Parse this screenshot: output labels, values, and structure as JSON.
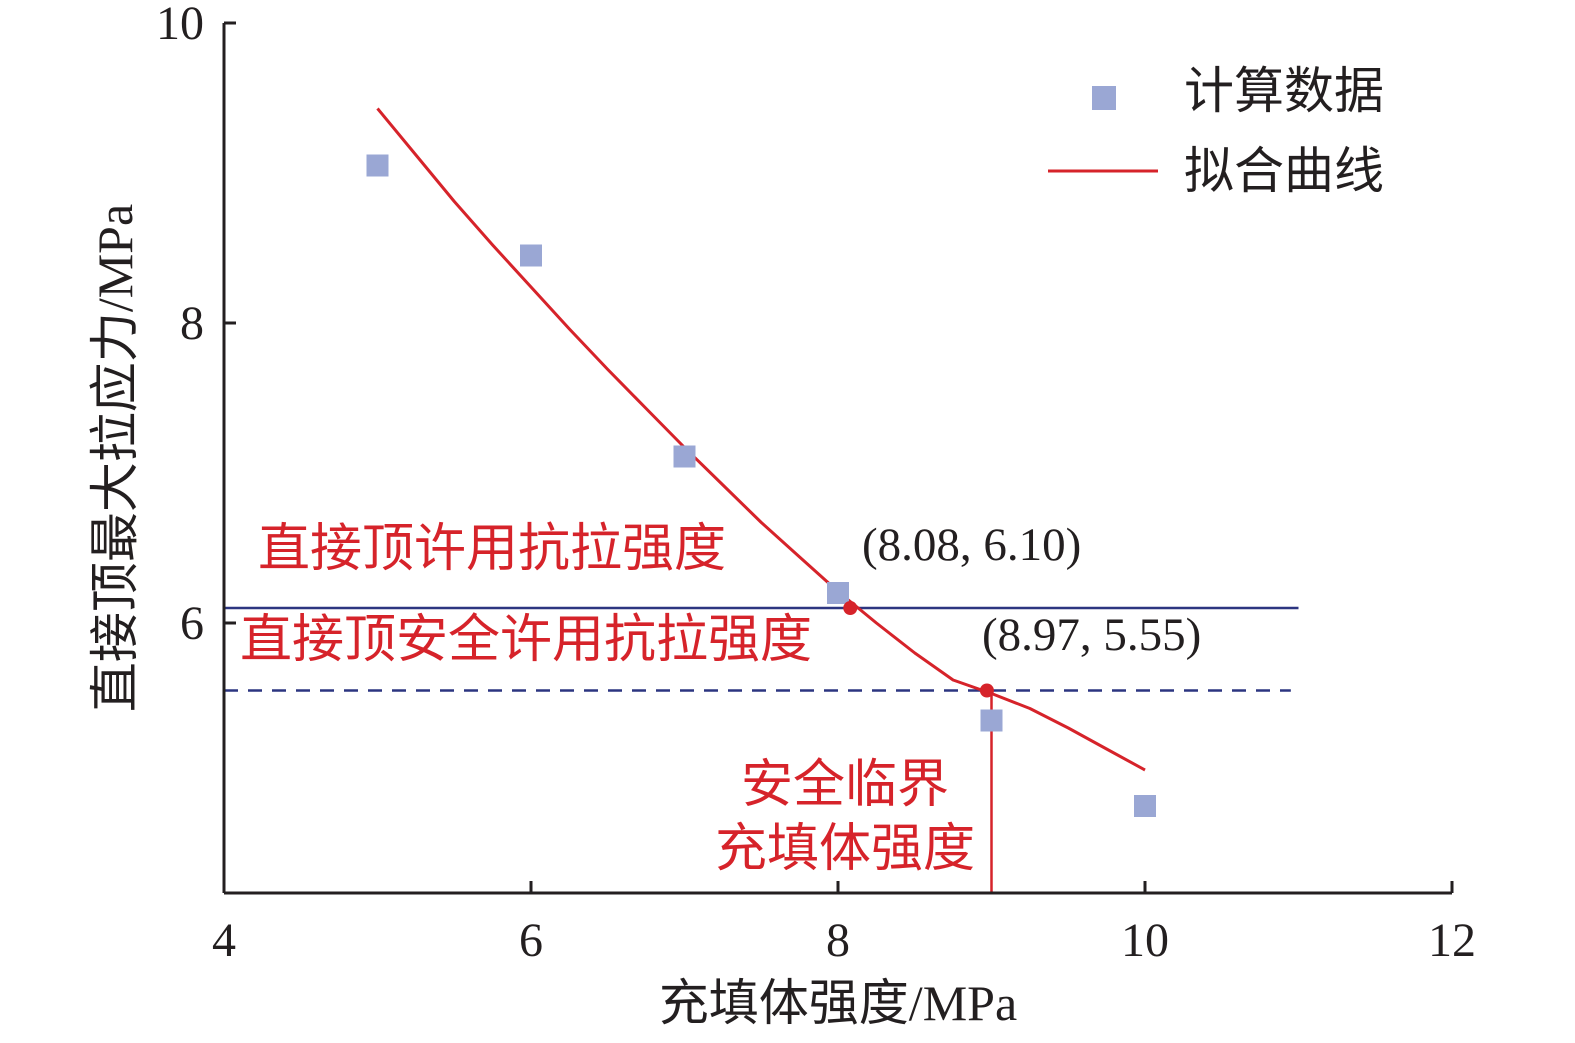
{
  "colors": {
    "scatter": "#9aa7d4",
    "fit": "#d6232a",
    "allow_line": "#2c3580",
    "safe_line": "#2c3580",
    "critical": "#d6232a",
    "annotation_text": "#d6232a",
    "axis": "#231f20"
  },
  "chart_data": {
    "type": "scatter",
    "title": "",
    "xlabel": "充填体强度/MPa",
    "ylabel": "直接顶最大拉应力/MPa",
    "xlim": [
      4,
      12
    ],
    "ylim": [
      4.2,
      10
    ],
    "xticks": [
      4,
      6,
      8,
      10,
      12
    ],
    "yticks": [
      6,
      8,
      10
    ],
    "xtick_labels": [
      "4",
      "6",
      "8",
      "10",
      "12"
    ],
    "ytick_labels": [
      "6",
      "8",
      "10"
    ],
    "grid": false,
    "legend_position": "top-right",
    "series": [
      {
        "name": "计算数据",
        "type": "scatter",
        "marker": "square",
        "x": [
          5,
          6,
          7,
          8,
          9,
          10
        ],
        "y": [
          9.05,
          8.45,
          7.11,
          6.2,
          5.35,
          4.78
        ]
      },
      {
        "name": "拟合曲线",
        "type": "line",
        "x": [
          5,
          5.25,
          5.5,
          5.75,
          6,
          6.25,
          6.5,
          6.75,
          7,
          7.25,
          7.5,
          7.75,
          8,
          8.25,
          8.5,
          8.75,
          9,
          9.25,
          9.5,
          9.75,
          10
        ],
        "y": [
          9.43,
          9.12,
          8.81,
          8.52,
          8.24,
          7.96,
          7.69,
          7.43,
          7.17,
          6.92,
          6.67,
          6.44,
          6.21,
          6.0,
          5.8,
          5.62,
          5.53,
          5.43,
          5.3,
          5.16,
          5.02
        ]
      }
    ],
    "reference_lines": [
      {
        "label": "直接顶许用抗拉强度",
        "y": 6.1,
        "style": "solid",
        "x_range": [
          4,
          11
        ]
      },
      {
        "label": "直接顶安全许用抗拉强度",
        "y": 5.55,
        "style": "dashed",
        "x_range": [
          4,
          10.95
        ]
      }
    ],
    "critical_line": {
      "label_line1": "安全临界",
      "label_line2": "充填体强度",
      "x": 9.0
    },
    "points": [
      {
        "x": 8.08,
        "y": 6.1,
        "label": "(8.08, 6.10)"
      },
      {
        "x": 8.97,
        "y": 5.55,
        "label": "(8.97, 5.55)"
      }
    ]
  }
}
